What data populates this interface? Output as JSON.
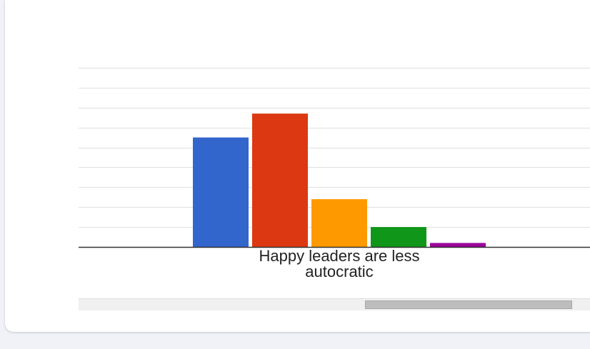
{
  "chart_data": {
    "type": "bar",
    "categories": [
      "Happy leaders are less autocratic"
    ],
    "category_label_lines": [
      "Happy leaders are less",
      "autocratic"
    ],
    "series": [
      {
        "values": [
          55
        ],
        "color": "#3366cc"
      },
      {
        "values": [
          67
        ],
        "color": "#dc3912"
      },
      {
        "values": [
          24
        ],
        "color": "#ff9900"
      },
      {
        "values": [
          10
        ],
        "color": "#109618"
      },
      {
        "values": [
          2
        ],
        "color": "#990099"
      }
    ],
    "ylim": [
      0,
      90
    ],
    "grid": true,
    "gridline_count": 9,
    "axis_color": "#333333",
    "grid_color": "#e0e0e0"
  },
  "scrollbar": {
    "thumb_position": 0.56,
    "thumb_fraction": 0.4
  }
}
